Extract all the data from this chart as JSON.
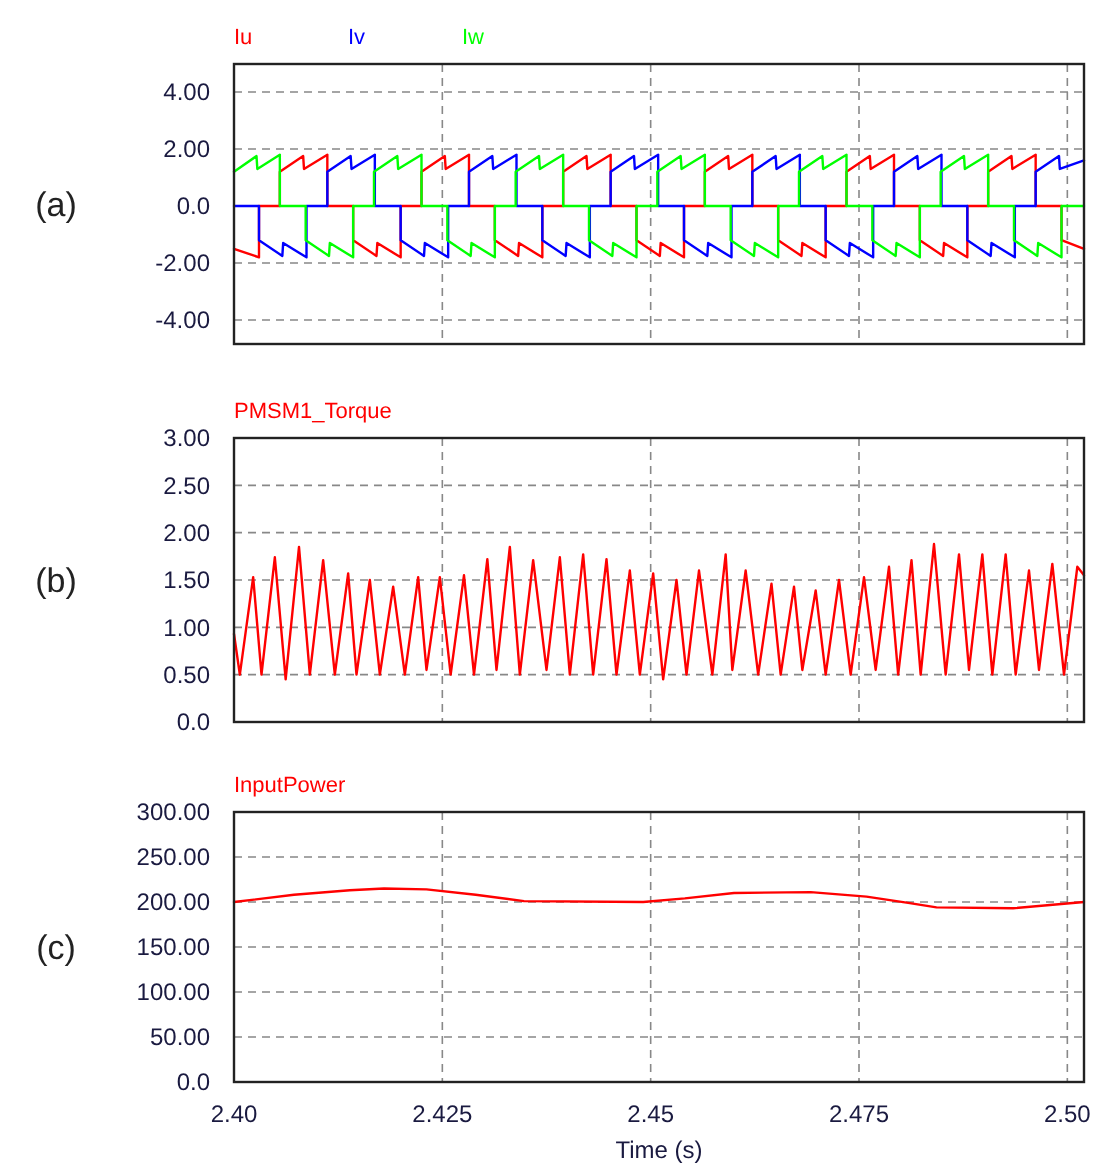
{
  "chart_data": [
    {
      "type": "line",
      "annotations": [
        "(a)"
      ],
      "legend": "top left",
      "grid": true,
      "tick_labels": "y",
      "xlim": [
        2.4,
        2.502
      ],
      "xticks": [
        2.425,
        2.45,
        2.475,
        2.5
      ],
      "ylim": [
        -4.84,
        4.98
      ],
      "yticks": [
        {
          "value": 4,
          "label": "4.00"
        },
        {
          "value": 2,
          "label": "2.00"
        },
        {
          "value": 0,
          "label": "0.0"
        },
        {
          "value": -2,
          "label": "-2.00"
        },
        {
          "value": -4,
          "label": "-4.00"
        }
      ],
      "series": [
        {
          "name": "Iu",
          "color": "#ff0000",
          "x": [
            2.4,
            2.403,
            2.403,
            2.4055,
            2.4055,
            2.4083,
            2.4084,
            2.4112,
            2.4112,
            2.4143,
            2.4143,
            2.4171,
            2.4172,
            2.42,
            2.42,
            2.4225,
            2.4225,
            2.4253,
            2.4254,
            2.4282,
            2.4282,
            2.4313,
            2.4313,
            2.4341,
            2.4342,
            2.437,
            2.437,
            2.4395,
            2.4395,
            2.4423,
            2.4424,
            2.4452,
            2.4452,
            2.4483,
            2.4483,
            2.4511,
            2.4512,
            2.454,
            2.454,
            2.4565,
            2.4565,
            2.4593,
            2.4594,
            2.4622,
            2.4622,
            2.4653,
            2.4653,
            2.4681,
            2.4682,
            2.471,
            2.471,
            2.4735,
            2.4735,
            2.4763,
            2.4764,
            2.4792,
            2.4792,
            2.4823,
            2.4823,
            2.4851,
            2.4852,
            2.488,
            2.488,
            2.4905,
            2.4905,
            2.4933,
            2.4934,
            2.4962,
            2.4962,
            2.4993,
            2.4993,
            2.502
          ],
          "values": [
            -1.5,
            -1.8,
            0,
            0,
            1.2,
            1.75,
            1.3,
            1.8,
            0,
            0,
            -1.2,
            -1.75,
            -1.3,
            -1.8,
            0,
            0,
            1.2,
            1.75,
            1.3,
            1.8,
            0,
            0,
            -1.2,
            -1.75,
            -1.3,
            -1.8,
            0,
            0,
            1.2,
            1.75,
            1.3,
            1.8,
            0,
            0,
            -1.2,
            -1.75,
            -1.3,
            -1.8,
            0,
            0,
            1.2,
            1.75,
            1.3,
            1.8,
            0,
            0,
            -1.2,
            -1.75,
            -1.3,
            -1.8,
            0,
            0,
            1.2,
            1.75,
            1.3,
            1.8,
            0,
            0,
            -1.2,
            -1.75,
            -1.3,
            -1.8,
            0,
            0,
            1.2,
            1.75,
            1.3,
            1.8,
            0,
            0,
            -1.2,
            -1.5
          ]
        },
        {
          "name": "Iv",
          "color": "#0000ff",
          "x": [
            2.4,
            2.403,
            2.403,
            2.4058,
            2.4059,
            2.4087,
            2.4087,
            2.4112,
            2.4112,
            2.414,
            2.4141,
            2.4169,
            2.4169,
            2.42,
            2.42,
            2.4228,
            2.4229,
            2.4257,
            2.4257,
            2.4282,
            2.4282,
            2.431,
            2.4311,
            2.4339,
            2.4339,
            2.437,
            2.437,
            2.4398,
            2.4399,
            2.4427,
            2.4427,
            2.4452,
            2.4452,
            2.448,
            2.4481,
            2.4509,
            2.4509,
            2.454,
            2.454,
            2.4568,
            2.4569,
            2.4597,
            2.4597,
            2.4622,
            2.4622,
            2.465,
            2.4651,
            2.4679,
            2.4679,
            2.471,
            2.471,
            2.4738,
            2.4739,
            2.4767,
            2.4767,
            2.4792,
            2.4792,
            2.482,
            2.4821,
            2.4849,
            2.4849,
            2.488,
            2.488,
            2.4908,
            2.4909,
            2.4937,
            2.4937,
            2.4962,
            2.4962,
            2.499,
            2.4991,
            2.502
          ],
          "values": [
            0,
            0,
            -1.2,
            -1.75,
            -1.3,
            -1.8,
            0,
            0,
            1.2,
            1.75,
            1.3,
            1.8,
            0,
            0,
            -1.2,
            -1.75,
            -1.3,
            -1.8,
            0,
            0,
            1.2,
            1.75,
            1.3,
            1.8,
            0,
            0,
            -1.2,
            -1.75,
            -1.3,
            -1.8,
            0,
            0,
            1.2,
            1.75,
            1.3,
            1.8,
            0,
            0,
            -1.2,
            -1.75,
            -1.3,
            -1.8,
            0,
            0,
            1.2,
            1.75,
            1.3,
            1.8,
            0,
            0,
            -1.2,
            -1.75,
            -1.3,
            -1.8,
            0,
            0,
            1.2,
            1.75,
            1.3,
            1.8,
            0,
            0,
            -1.2,
            -1.75,
            -1.3,
            -1.8,
            0,
            0,
            1.2,
            1.75,
            1.3,
            1.6
          ]
        },
        {
          "name": "Iw",
          "color": "#00ff00",
          "x": [
            2.4,
            2.4027,
            2.4028,
            2.4055,
            2.4055,
            2.4086,
            2.4086,
            2.4114,
            2.4115,
            2.4143,
            2.4143,
            2.4168,
            2.4168,
            2.4196,
            2.4197,
            2.4225,
            2.4225,
            2.4256,
            2.4256,
            2.4284,
            2.4285,
            2.4313,
            2.4313,
            2.4338,
            2.4338,
            2.4366,
            2.4367,
            2.4395,
            2.4395,
            2.4426,
            2.4426,
            2.4454,
            2.4455,
            2.4483,
            2.4483,
            2.4508,
            2.4508,
            2.4536,
            2.4537,
            2.4565,
            2.4565,
            2.4596,
            2.4596,
            2.4624,
            2.4625,
            2.4653,
            2.4653,
            2.4678,
            2.4678,
            2.4706,
            2.4707,
            2.4735,
            2.4735,
            2.4766,
            2.4766,
            2.4794,
            2.4795,
            2.4823,
            2.4823,
            2.4848,
            2.4848,
            2.4876,
            2.4877,
            2.4905,
            2.4905,
            2.4936,
            2.4936,
            2.4964,
            2.4965,
            2.4993,
            2.4993,
            2.502
          ],
          "values": [
            1.2,
            1.75,
            1.3,
            1.8,
            0,
            0,
            -1.2,
            -1.75,
            -1.3,
            -1.8,
            0,
            0,
            1.2,
            1.75,
            1.3,
            1.8,
            0,
            0,
            -1.2,
            -1.75,
            -1.3,
            -1.8,
            0,
            0,
            1.2,
            1.75,
            1.3,
            1.8,
            0,
            0,
            -1.2,
            -1.75,
            -1.3,
            -1.8,
            0,
            0,
            1.2,
            1.75,
            1.3,
            1.8,
            0,
            0,
            -1.2,
            -1.75,
            -1.3,
            -1.8,
            0,
            0,
            1.2,
            1.75,
            1.3,
            1.8,
            0,
            0,
            -1.2,
            -1.75,
            -1.3,
            -1.8,
            0,
            0,
            1.2,
            1.75,
            1.3,
            1.8,
            0,
            0,
            -1.2,
            -1.75,
            -1.3,
            -1.8,
            0,
            0
          ]
        }
      ]
    },
    {
      "type": "line",
      "annotations": [
        "(b)"
      ],
      "legend": "top left",
      "grid": true,
      "tick_labels": "y",
      "xlim": [
        2.4,
        2.502
      ],
      "xticks": [
        2.425,
        2.45,
        2.475,
        2.5
      ],
      "ylim": [
        0,
        3
      ],
      "yticks": [
        {
          "value": 0,
          "label": "0.0"
        },
        {
          "value": 0.5,
          "label": "0.50"
        },
        {
          "value": 1,
          "label": "1.00"
        },
        {
          "value": 1.5,
          "label": "1.50"
        },
        {
          "value": 2,
          "label": "2.00"
        },
        {
          "value": 2.5,
          "label": "2.50"
        },
        {
          "value": 3,
          "label": "3.00"
        }
      ],
      "series": [
        {
          "name": "PMSM1_Torque",
          "color": "#ff0000",
          "x": [
            2.4,
            2.4007,
            2.4023,
            2.4033,
            2.4049,
            2.4062,
            2.4078,
            2.4091,
            2.4107,
            2.4121,
            2.4137,
            2.4147,
            2.4163,
            2.4175,
            2.4191,
            2.4205,
            2.4221,
            2.4231,
            2.4247,
            2.426,
            2.4276,
            2.4288,
            2.4304,
            2.4315,
            2.4331,
            2.4343,
            2.4359,
            2.4375,
            2.4391,
            2.4403,
            2.4419,
            2.4431,
            2.4447,
            2.4459,
            2.4475,
            2.4487,
            2.4503,
            2.4515,
            2.4531,
            2.4543,
            2.4558,
            2.4574,
            2.459,
            2.4598,
            2.4614,
            2.4629,
            2.4645,
            2.4656,
            2.4672,
            2.4682,
            2.4698,
            2.471,
            2.4726,
            2.474,
            2.4756,
            2.477,
            2.4786,
            2.4797,
            2.4813,
            2.4824,
            2.484,
            2.4854,
            2.487,
            2.4882,
            2.4898,
            2.491,
            2.4926,
            2.4938,
            2.4954,
            2.4966,
            2.4982,
            2.4996,
            2.5012,
            2.502
          ],
          "values": [
            0.93,
            0.5,
            1.53,
            0.5,
            1.74,
            0.45,
            1.85,
            0.5,
            1.71,
            0.5,
            1.57,
            0.5,
            1.5,
            0.5,
            1.43,
            0.5,
            1.53,
            0.55,
            1.53,
            0.5,
            1.55,
            0.5,
            1.72,
            0.55,
            1.85,
            0.5,
            1.71,
            0.55,
            1.74,
            0.5,
            1.77,
            0.5,
            1.72,
            0.5,
            1.6,
            0.5,
            1.57,
            0.45,
            1.5,
            0.5,
            1.6,
            0.5,
            1.77,
            0.55,
            1.6,
            0.5,
            1.46,
            0.5,
            1.43,
            0.55,
            1.39,
            0.5,
            1.5,
            0.5,
            1.53,
            0.55,
            1.64,
            0.5,
            1.71,
            0.5,
            1.88,
            0.5,
            1.77,
            0.55,
            1.77,
            0.5,
            1.77,
            0.5,
            1.6,
            0.55,
            1.67,
            0.5,
            1.64,
            1.55
          ]
        }
      ]
    },
    {
      "type": "line",
      "annotations": [
        "(c)"
      ],
      "legend": "top left",
      "grid": true,
      "xlabel": "Time (s)",
      "xlim": [
        2.4,
        2.502
      ],
      "xticks": [
        {
          "value": 2.4,
          "label": "2.40"
        },
        2.425,
        2.45,
        2.475,
        {
          "value": 2.5,
          "label": "2.50"
        }
      ],
      "ylim": [
        0,
        300
      ],
      "yticks": [
        {
          "value": 0,
          "label": "0.0"
        },
        {
          "value": 50,
          "label": "50.00"
        },
        {
          "value": 100,
          "label": "100.00"
        },
        {
          "value": 150,
          "label": "150.00"
        },
        {
          "value": 200,
          "label": "200.00"
        },
        {
          "value": 250,
          "label": "250.00"
        },
        {
          "value": 300,
          "label": "300.00"
        }
      ],
      "series": [
        {
          "name": "InputPower",
          "color": "#ff0000",
          "x": [
            2.4,
            2.4072,
            2.4139,
            2.418,
            2.4231,
            2.429,
            2.4348,
            2.4491,
            2.4541,
            2.46,
            2.4692,
            2.4759,
            2.4809,
            2.4843,
            2.4935,
            2.502
          ],
          "values": [
            200,
            208,
            213,
            215,
            214,
            208,
            201,
            200,
            204,
            210,
            211,
            206,
            199,
            194,
            193,
            200
          ]
        }
      ]
    }
  ]
}
